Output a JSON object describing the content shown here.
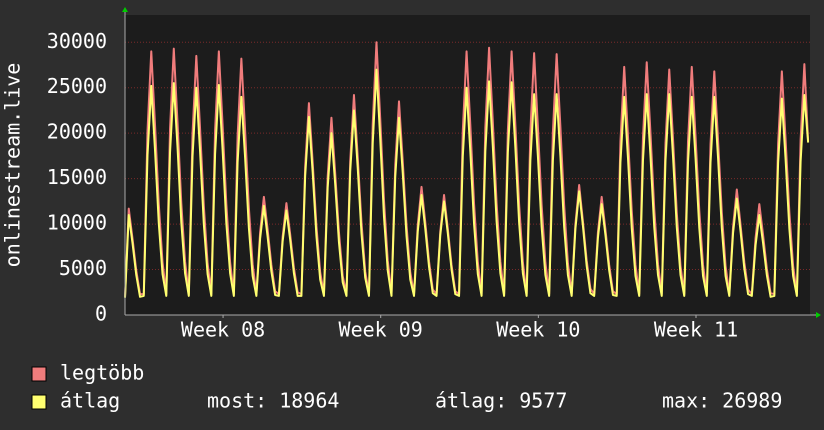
{
  "chart_data": {
    "type": "line",
    "y_label": "onlinestream.live",
    "x": [
      0,
      4,
      8,
      12,
      16,
      20,
      24,
      28,
      32,
      36,
      40,
      44,
      48,
      52,
      56,
      60,
      64,
      68,
      72,
      76,
      80,
      84,
      88,
      92,
      96,
      100,
      104,
      108,
      112,
      116,
      120,
      124,
      128,
      132,
      136,
      140,
      144,
      148,
      152,
      156,
      160,
      164,
      168,
      172,
      176,
      180,
      184,
      188,
      192,
      196,
      200,
      204,
      208,
      212,
      216,
      220,
      224,
      228,
      232,
      236,
      240,
      244,
      248,
      252,
      256,
      260,
      264,
      268,
      272,
      276,
      280,
      284,
      288,
      292,
      296,
      300,
      304,
      308,
      312,
      316,
      320,
      324,
      328,
      332,
      336,
      340,
      344,
      348,
      352,
      356,
      360,
      364,
      368,
      372,
      376,
      380,
      384,
      388,
      392,
      396,
      400,
      404,
      408,
      412,
      416,
      420,
      424,
      428,
      432,
      436,
      440,
      444,
      448,
      452,
      456,
      460,
      464,
      468,
      472,
      476,
      480,
      484,
      488,
      492,
      496,
      500,
      504,
      508,
      512,
      516,
      520,
      524,
      528,
      532,
      536,
      540,
      544,
      548,
      552,
      556,
      560,
      564,
      568,
      572,
      576,
      580,
      584,
      588,
      592,
      596,
      600,
      604,
      608,
      612,
      616,
      620,
      624,
      628,
      632,
      636,
      640,
      644,
      648,
      652,
      656,
      660,
      664,
      668,
      672,
      676,
      680,
      684,
      688,
      692,
      696,
      700,
      704,
      708,
      712,
      716,
      720,
      724,
      728
    ],
    "series": [
      {
        "name": "legtöbb",
        "color": "#f07c7c",
        "values": [
          2000,
          11700,
          8400,
          4900,
          2300,
          2300,
          20300,
          29000,
          20900,
          12200,
          5800,
          2300,
          20500,
          29300,
          21100,
          12300,
          5900,
          2300,
          20000,
          28500,
          20500,
          12000,
          5700,
          2300,
          20300,
          29000,
          20900,
          12200,
          5800,
          2300,
          19700,
          28200,
          20300,
          11800,
          5600,
          2300,
          9100,
          13000,
          9400,
          5500,
          2600,
          2300,
          8600,
          12300,
          8900,
          5200,
          2500,
          2300,
          16300,
          23300,
          16800,
          9800,
          4700,
          2300,
          15200,
          21700,
          15600,
          9100,
          4300,
          2300,
          16900,
          24200,
          17400,
          10200,
          4800,
          2300,
          21000,
          30000,
          21600,
          12600,
          6000,
          2300,
          16500,
          23500,
          16900,
          9900,
          4700,
          2300,
          9900,
          14100,
          10200,
          5900,
          2800,
          2300,
          9200,
          13200,
          9500,
          5500,
          2600,
          2300,
          20300,
          29000,
          20900,
          12200,
          5800,
          2300,
          20600,
          29400,
          21200,
          12300,
          5900,
          2300,
          20300,
          29000,
          20900,
          12200,
          5800,
          2300,
          20200,
          28800,
          20700,
          12100,
          5800,
          2300,
          20100,
          28700,
          20700,
          12100,
          5700,
          2300,
          10000,
          14300,
          10300,
          6000,
          2900,
          2300,
          9100,
          13000,
          9400,
          5500,
          2600,
          2300,
          19100,
          27300,
          19700,
          11500,
          5500,
          2300,
          19500,
          27800,
          20000,
          11700,
          5600,
          2300,
          18900,
          27000,
          19400,
          11300,
          5400,
          2300,
          19100,
          27300,
          19700,
          11500,
          5500,
          2300,
          18800,
          26800,
          19300,
          11300,
          5400,
          2300,
          9700,
          13800,
          9900,
          5800,
          2800,
          2300,
          8500,
          12200,
          8800,
          5100,
          2400,
          2300,
          18800,
          26800,
          19300,
          11300,
          5400,
          2300,
          19300,
          27600,
          19100
        ]
      },
      {
        "name": "átlag",
        "color": "#ffff70",
        "values": [
          1900,
          11000,
          7900,
          4400,
          2000,
          2100,
          17600,
          25200,
          18100,
          10100,
          4500,
          2100,
          17900,
          25500,
          18400,
          10200,
          4600,
          2100,
          17500,
          25000,
          18000,
          10000,
          4500,
          2100,
          17700,
          25300,
          18200,
          10100,
          4600,
          2100,
          16800,
          24000,
          17300,
          9600,
          4300,
          2100,
          8400,
          12000,
          8600,
          4800,
          2200,
          2100,
          8100,
          11500,
          8300,
          4600,
          2100,
          2100,
          15300,
          21800,
          15700,
          8700,
          3900,
          2100,
          14000,
          20000,
          14400,
          8000,
          3600,
          2100,
          15800,
          22500,
          16200,
          9000,
          4100,
          2100,
          18900,
          26989,
          19400,
          10800,
          4900,
          2100,
          15200,
          21700,
          15600,
          8700,
          3900,
          2100,
          9200,
          13200,
          9500,
          5300,
          2400,
          2100,
          8800,
          12500,
          9000,
          5000,
          2300,
          2100,
          17500,
          25000,
          18000,
          10000,
          4500,
          2100,
          18000,
          25700,
          18500,
          10300,
          4600,
          2100,
          17900,
          25600,
          18400,
          10200,
          4600,
          2100,
          17000,
          24300,
          17500,
          9700,
          4400,
          2100,
          17000,
          24300,
          17500,
          9700,
          4400,
          2100,
          9500,
          13600,
          9800,
          5400,
          2400,
          2100,
          8500,
          12200,
          8800,
          4900,
          2200,
          2100,
          16800,
          24000,
          17300,
          9600,
          4300,
          2100,
          17000,
          24300,
          17500,
          9700,
          4400,
          2100,
          17000,
          24300,
          17500,
          9700,
          4400,
          2100,
          16800,
          24000,
          17300,
          9600,
          4300,
          2100,
          16800,
          24000,
          17300,
          9600,
          4300,
          2100,
          9000,
          12800,
          9200,
          5100,
          2300,
          2100,
          7700,
          11000,
          7900,
          4400,
          2000,
          2100,
          16700,
          23800,
          17100,
          9500,
          4300,
          2100,
          16900,
          24200,
          18964
        ]
      }
    ],
    "xlim": [
      0,
      730
    ],
    "xticks": [
      {
        "value": 104.5,
        "label": "Week 08"
      },
      {
        "value": 272.5,
        "label": "Week 09"
      },
      {
        "value": 440.5,
        "label": "Week 10"
      },
      {
        "value": 608.5,
        "label": "Week 11"
      }
    ],
    "ylim": [
      0,
      33000
    ],
    "yticks": [
      0,
      5000,
      10000,
      15000,
      20000,
      25000,
      30000
    ],
    "grid": true,
    "stats": [
      {
        "label": "most:",
        "value": 18964
      },
      {
        "label": "átlag:",
        "value": 9577
      },
      {
        "label": "max:",
        "value": 26989
      }
    ]
  }
}
